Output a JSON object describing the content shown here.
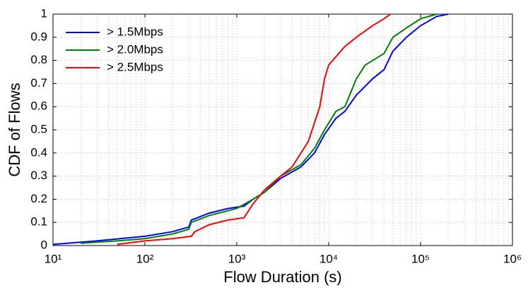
{
  "chart_data": {
    "type": "line",
    "x_label": "Flow Duration (s)",
    "y_label": "CDF of Flows",
    "xscale": "log",
    "xlim": [
      10,
      1000000
    ],
    "ylim": [
      0,
      1
    ],
    "xticks": [
      {
        "value": 10,
        "label": "10¹"
      },
      {
        "value": 100,
        "label": "10²"
      },
      {
        "value": 1000,
        "label": "10³"
      },
      {
        "value": 10000,
        "label": "10⁴"
      },
      {
        "value": 100000,
        "label": "10⁵"
      },
      {
        "value": 1000000,
        "label": "10⁶"
      }
    ],
    "yticks": [
      0,
      0.1,
      0.2,
      0.3,
      0.4,
      0.5,
      0.6,
      0.7,
      0.8,
      0.9,
      1
    ],
    "grid": true,
    "legend": "upper left",
    "series": [
      {
        "name": "> 1.5Mbps",
        "color": "#0000ff",
        "x": [
          10,
          30,
          100,
          200,
          300,
          320,
          500,
          800,
          1200,
          1500,
          2000,
          3000,
          5000,
          7000,
          9000,
          12000,
          15000,
          20000,
          30000,
          40000,
          50000,
          70000,
          100000,
          150000,
          200000
        ],
        "values": [
          0.005,
          0.02,
          0.04,
          0.06,
          0.08,
          0.11,
          0.14,
          0.16,
          0.17,
          0.2,
          0.23,
          0.29,
          0.34,
          0.4,
          0.48,
          0.55,
          0.58,
          0.65,
          0.72,
          0.76,
          0.84,
          0.9,
          0.95,
          0.99,
          1
        ]
      },
      {
        "name": "> 2.0Mbps",
        "color": "#008000",
        "x": [
          20,
          50,
          100,
          200,
          300,
          320,
          500,
          1000,
          1500,
          2000,
          3000,
          5000,
          7000,
          9000,
          12000,
          15000,
          20000,
          25000,
          40000,
          50000,
          70000,
          100000,
          150000
        ],
        "values": [
          0.01,
          0.02,
          0.03,
          0.05,
          0.07,
          0.1,
          0.13,
          0.16,
          0.2,
          0.23,
          0.3,
          0.35,
          0.42,
          0.5,
          0.58,
          0.6,
          0.72,
          0.78,
          0.83,
          0.9,
          0.94,
          0.98,
          1
        ]
      },
      {
        "name": "> 2.5Mbps",
        "color": "#ff0000",
        "x": [
          50,
          100,
          200,
          320,
          350,
          500,
          800,
          1200,
          1500,
          2000,
          3000,
          4000,
          6000,
          8000,
          9000,
          10000,
          15000,
          20000,
          30000,
          40000,
          47000
        ],
        "values": [
          0.005,
          0.02,
          0.03,
          0.04,
          0.06,
          0.09,
          0.11,
          0.12,
          0.18,
          0.24,
          0.3,
          0.34,
          0.45,
          0.6,
          0.72,
          0.78,
          0.86,
          0.9,
          0.95,
          0.98,
          1
        ]
      }
    ]
  }
}
